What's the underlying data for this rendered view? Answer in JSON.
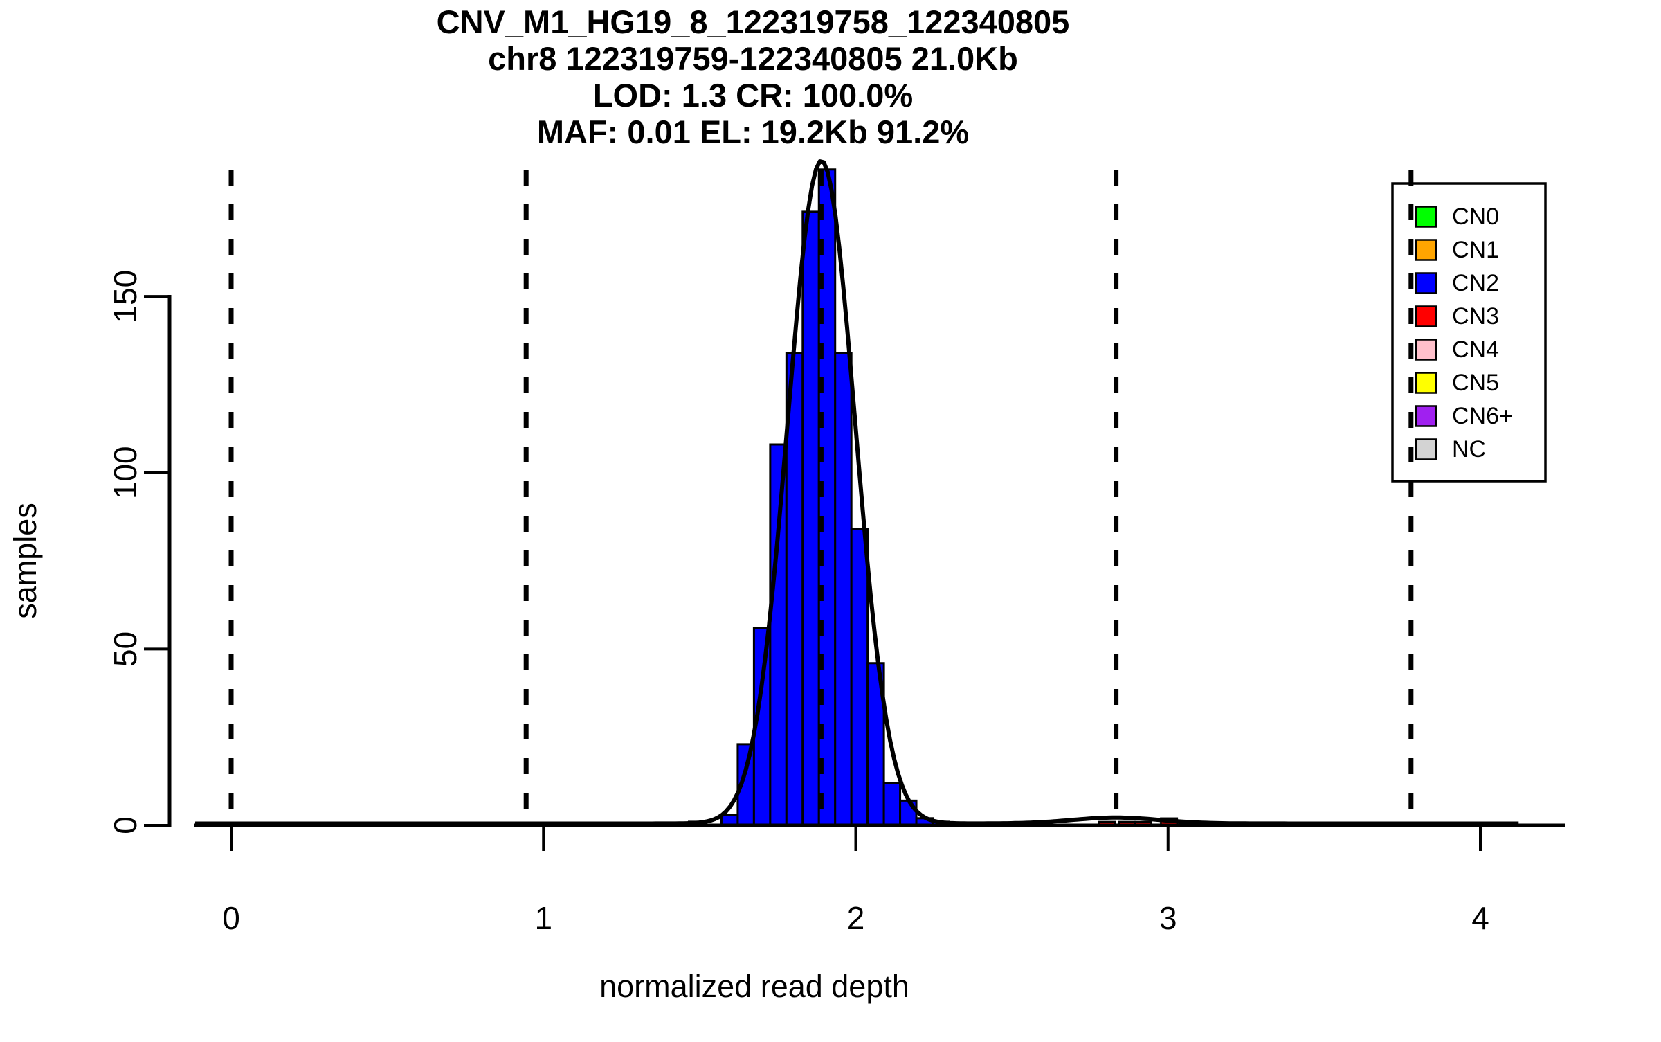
{
  "header": {
    "title_lines": [
      "CNV_M1_HG19_8_122319758_122340805",
      "chr8 122319759-122340805 21.0Kb",
      "LOD: 1.3 CR: 100.0%",
      "MAF: 0.01 EL: 19.2Kb 91.2%"
    ]
  },
  "axes": {
    "x_label": "normalized read depth",
    "y_label": "samples",
    "x_ticks": [
      0,
      1,
      2,
      3,
      4
    ],
    "y_ticks": [
      0,
      50,
      100,
      150
    ]
  },
  "legend": {
    "items": [
      {
        "label": "CN0",
        "color": "#00FF00"
      },
      {
        "label": "CN1",
        "color": "#FFA500"
      },
      {
        "label": "CN2",
        "color": "#0000FF"
      },
      {
        "label": "CN3",
        "color": "#FF0000"
      },
      {
        "label": "CN4",
        "color": "#FFC0CB"
      },
      {
        "label": "CN5",
        "color": "#FFFF00"
      },
      {
        "label": "CN6+",
        "color": "#A020F0"
      },
      {
        "label": "NC",
        "color": "#D3D3D3"
      }
    ]
  },
  "colors": {
    "background": "#FFFFFF",
    "bar_outline": "#000000",
    "cn2_fill": "#0000FF",
    "cn3_fill": "#FF0000",
    "curve": "#000000",
    "dashed_lines": "#000000"
  },
  "chart_data": {
    "type": "bar",
    "title": "CNV_M1_HG19_8_122319758_122340805",
    "subtitle_lines": [
      "chr8 122319759-122340805 21.0Kb",
      "LOD: 1.3 CR: 100.0%",
      "MAF: 0.01 EL: 19.2Kb 91.2%"
    ],
    "xlabel": "normalized read depth",
    "ylabel": "samples",
    "xlim": [
      -0.115,
      4.27
    ],
    "ylim": [
      0,
      190
    ],
    "grid": false,
    "legend_position": "top-right",
    "bin_width": 0.052,
    "series": [
      {
        "name": "CN2",
        "color": "#0000FF",
        "bin_lefts": [
          1.466,
          1.518,
          1.57,
          1.622,
          1.674,
          1.726,
          1.778,
          1.83,
          1.882,
          1.934,
          1.986,
          2.038,
          2.09,
          2.142,
          2.194,
          2.246
        ],
        "heights": [
          1,
          0,
          3,
          23,
          56,
          108,
          134,
          174,
          186,
          134,
          84,
          46,
          12,
          7,
          2,
          1
        ]
      },
      {
        "name": "CN3",
        "color": "#FF0000",
        "bin_lefts": [
          2.778,
          2.843,
          2.894,
          2.977
        ],
        "heights": [
          1,
          1,
          1,
          2
        ]
      }
    ],
    "low_black_segments": [
      {
        "from": -0.115,
        "to": 0.124,
        "height": 1.0
      },
      {
        "from": 0.696,
        "to": 1.188,
        "height": 0.9
      },
      {
        "from": 3.032,
        "to": 3.316,
        "height": 0.8
      }
    ],
    "density_curve": {
      "baseline": 0.5,
      "range": [
        -0.115,
        4.13
      ],
      "components": [
        {
          "center": 1.89,
          "sigma": 0.108,
          "amplitude": 188
        },
        {
          "center": 2.833,
          "sigma": 0.14,
          "amplitude": 1.7
        }
      ]
    },
    "cn_dashed_lines_x": [
      0,
      0.9445,
      1.889,
      2.8335,
      3.778
    ],
    "legend_items": [
      "CN0",
      "CN1",
      "CN2",
      "CN3",
      "CN4",
      "CN5",
      "CN6+",
      "NC"
    ]
  }
}
